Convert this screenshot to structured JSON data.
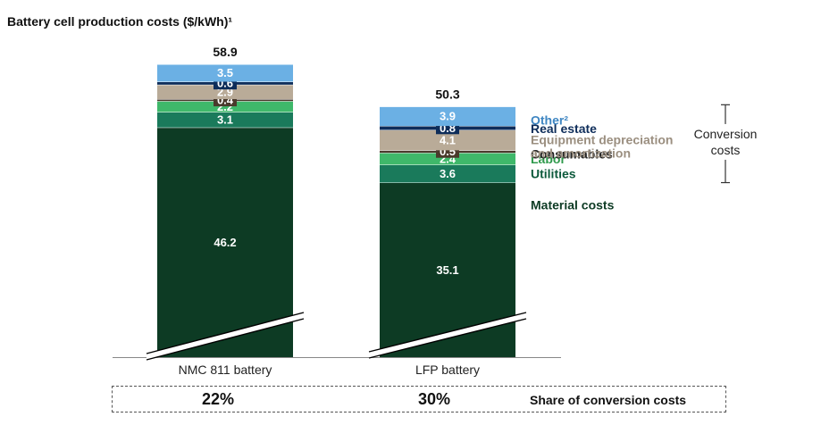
{
  "chart_data": {
    "type": "bar",
    "stacked": true,
    "title": "Battery cell production costs ($/kWh)¹",
    "categories": [
      "NMC 811 battery",
      "LFP battery"
    ],
    "totals": [
      "58.9",
      "50.3"
    ],
    "series": [
      {
        "name": "Material costs",
        "color": "#0d3b24",
        "text_color": "#0d3b24",
        "values": [
          46.2,
          35.1
        ]
      },
      {
        "name": "Utilities",
        "color": "#1a7a5b",
        "text_color": "#0d5a3c",
        "values": [
          3.1,
          3.6
        ]
      },
      {
        "name": "Labor",
        "color": "#3fb86a",
        "text_color": "#2f9a4c",
        "values": [
          2.2,
          2.4
        ]
      },
      {
        "name": "Consumables",
        "color": "#4a3a2c",
        "text_color": "#222222",
        "values": [
          0.4,
          0.5
        ]
      },
      {
        "name": "Equipment depreciation and amortization",
        "color": "#b9ab98",
        "text_color": "#9b8f80",
        "values": [
          2.9,
          4.1
        ]
      },
      {
        "name": "Real estate",
        "color": "#0e2d5a",
        "text_color": "#0e2d5a",
        "values": [
          0.6,
          0.8
        ]
      },
      {
        "name": "Other²",
        "color": "#6bb0e4",
        "text_color": "#3f86c2",
        "values": [
          3.5,
          3.9
        ]
      }
    ],
    "value_labels": [
      [
        "46.2",
        "3.1",
        "2.2",
        "0.4",
        "2.9",
        "0.6",
        "3.5"
      ],
      [
        "35.1",
        "3.6",
        "2.4",
        "0.5",
        "4.1",
        "0.8",
        "3.9"
      ]
    ],
    "series_labels": [
      "Material costs",
      "Utilities",
      "Labor",
      "Consumables",
      "Equipment depreciation",
      "and amortization",
      "Real estate",
      "Other²"
    ],
    "bracket_label": [
      "Conversion",
      "costs"
    ],
    "axis_break": true,
    "share_label": "Share of conversion costs",
    "shares": [
      "22%",
      "30%"
    ]
  }
}
